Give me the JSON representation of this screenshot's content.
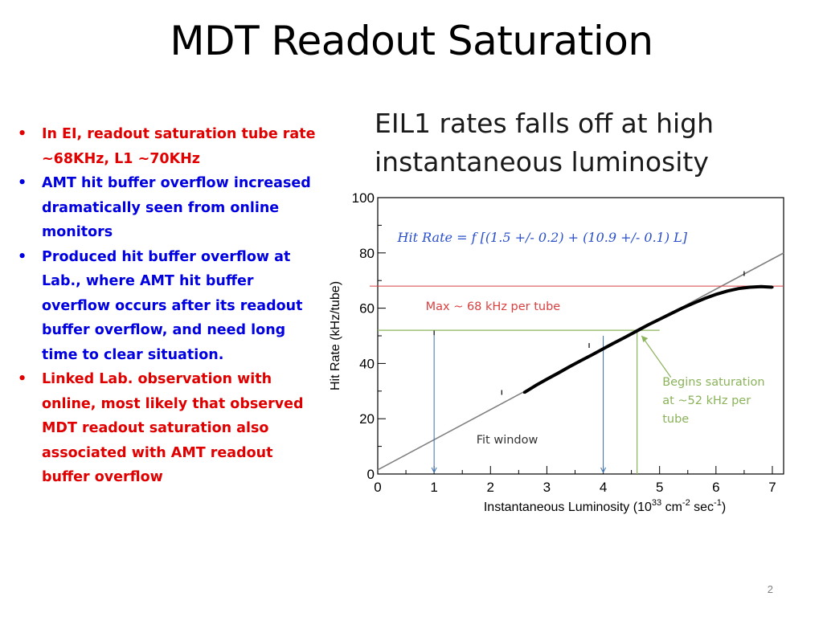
{
  "slide": {
    "title": "MDT Readout Saturation",
    "page_number": "2"
  },
  "bullets": [
    {
      "text": "In EI, readout saturation tube rate ~68KHz, L1 ~70KHz",
      "color": "#e00000"
    },
    {
      "text": "AMT hit buffer overflow increased dramatically seen from online monitors",
      "color": "#0000e0"
    },
    {
      "text": "Produced hit buffer overflow at Lab., where AMT hit buffer overflow occurs after its readout buffer overflow, and need long time to clear situation.",
      "color": "#0000e0"
    },
    {
      "text": "Linked  Lab. observation with online, most likely that observed MDT readout saturation also associated with AMT readout buffer overflow",
      "color": "#e00000"
    }
  ],
  "chart_heading": "EIL1 rates falls off at high\ninstantaneous luminosity",
  "chart_data": {
    "type": "scatter",
    "xlabel": "Instantaneous Luminosity (10",
    "xlabel_exp": "33",
    "xlabel_unit": " cm",
    "xlabel_unit_exp": "-2",
    "xlabel_tail": " sec",
    "xlabel_tail_exp": "-1",
    "xlabel_close": ")",
    "ylabel": "Hit Rate (kHz/tube)",
    "xlim": [
      0,
      7.2
    ],
    "ylim": [
      0,
      100
    ],
    "x_ticks": [
      "0",
      "1",
      "2",
      "3",
      "4",
      "5",
      "6",
      "7"
    ],
    "y_ticks": [
      "0",
      "20",
      "40",
      "60",
      "80",
      "100"
    ],
    "fit_formula": "Hit Rate = f [(1.5 +/- 0.2) + (10.9 +/- 0.1) L]",
    "fit_line": {
      "intercept": 1.5,
      "slope": 10.9
    },
    "series": [
      {
        "x": [
          2.6,
          2.8,
          3.0,
          3.2,
          3.4,
          3.6,
          3.8,
          4.0,
          4.2,
          4.4,
          4.6,
          4.8,
          5.0,
          5.2,
          5.4,
          5.6,
          5.8,
          6.0,
          6.2,
          6.4,
          6.6,
          6.8,
          7.0
        ],
        "y": [
          29.5,
          32.0,
          34.3,
          36.5,
          38.8,
          41.0,
          43.1,
          45.3,
          47.5,
          49.6,
          51.8,
          54.0,
          56.0,
          58.0,
          60.0,
          61.8,
          63.5,
          65.0,
          66.2,
          67.1,
          67.6,
          67.8,
          67.6
        ]
      }
    ],
    "outliers": [
      [
        1.0,
        51.0
      ],
      [
        2.2,
        29.5
      ],
      [
        3.75,
        46.5
      ],
      [
        6.5,
        72.5
      ]
    ],
    "max_line": {
      "y": 68,
      "label": "Max ~ 68 kHz per tube"
    },
    "saturation_line": {
      "y": 52,
      "x": 4.6
    },
    "saturation_label": [
      "Begins saturation",
      "at ~52 kHz per",
      "tube"
    ],
    "fit_window": {
      "x_start": 1.0,
      "x_end": 4.0,
      "label": "Fit window"
    },
    "colors": {
      "max_line": "#d94040",
      "fit_window": "#3a6fb0",
      "saturation": "#8ab35a",
      "formula": "#2a4fc8",
      "fit": "#808080"
    }
  }
}
